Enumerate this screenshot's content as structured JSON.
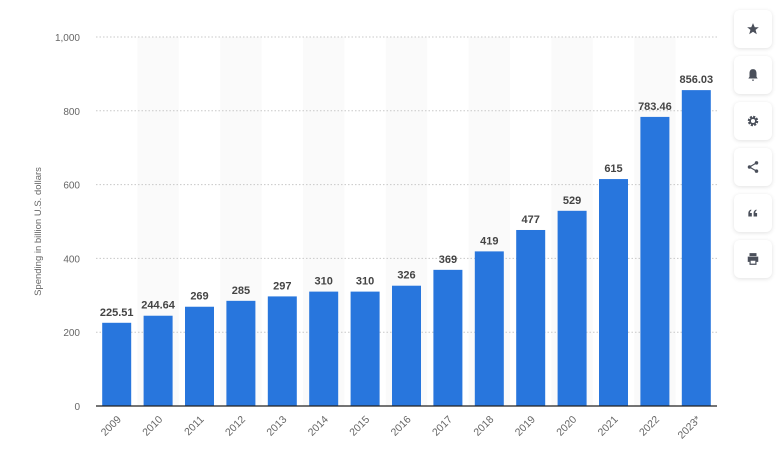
{
  "chart_data": {
    "type": "bar",
    "title": "",
    "xlabel": "",
    "ylabel": "Spending in billion U.S. dollars",
    "categories": [
      "2009",
      "2010",
      "2011",
      "2012",
      "2013",
      "2014",
      "2015",
      "2016",
      "2017",
      "2018",
      "2019",
      "2020",
      "2021",
      "2022",
      "2023*"
    ],
    "values": [
      225.51,
      244.64,
      269,
      285,
      297,
      310,
      310,
      326,
      369,
      419,
      477,
      529,
      615,
      783.46,
      856.03
    ],
    "data_labels": [
      "225.51",
      "244.64",
      "269",
      "285",
      "297",
      "310",
      "310",
      "326",
      "369",
      "419",
      "477",
      "529",
      "615",
      "783.46",
      "856.03"
    ],
    "ylim": [
      0,
      1000
    ],
    "yticks": [
      0,
      200,
      400,
      600,
      800,
      1000
    ],
    "ytick_labels": [
      "0",
      "200",
      "400",
      "600",
      "800",
      "1,000"
    ],
    "grid": true,
    "bar_color": "#2876dd"
  },
  "sidebar": {
    "buttons": [
      {
        "icon": "star-icon"
      },
      {
        "icon": "bell-icon"
      },
      {
        "icon": "gear-icon"
      },
      {
        "icon": "share-icon"
      },
      {
        "icon": "quote-icon"
      },
      {
        "icon": "print-icon"
      }
    ]
  }
}
